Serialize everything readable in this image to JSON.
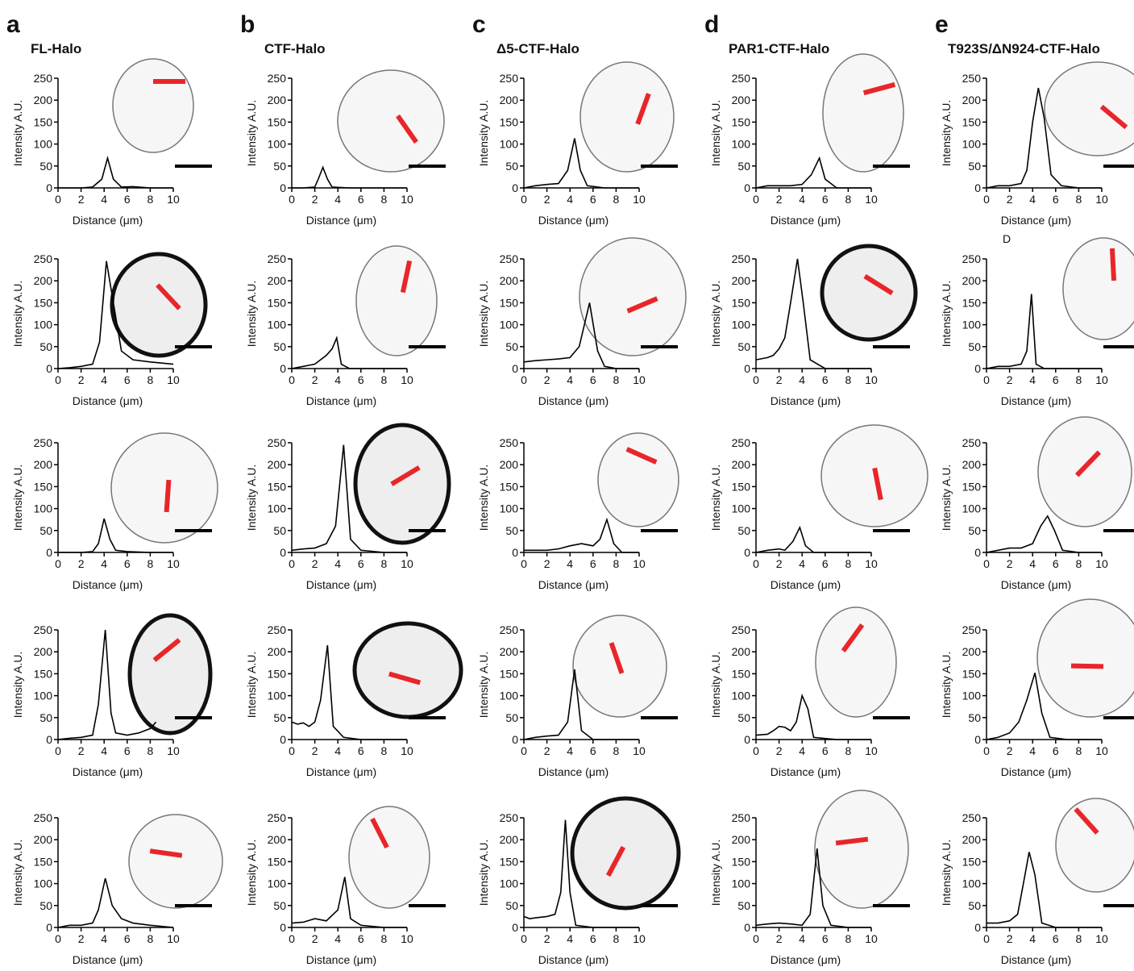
{
  "panels": [
    {
      "letter": "a",
      "title": "FL-Halo"
    },
    {
      "letter": "b",
      "title": "CTF-Halo"
    },
    {
      "letter": "c",
      "title": "Δ5-CTF-Halo"
    },
    {
      "letter": "d",
      "title": "PAR1-CTF-Halo"
    },
    {
      "letter": "e",
      "title": "T923S/ΔN924-CTF-Halo"
    }
  ],
  "chart_data": [
    {
      "type": "line",
      "xlabel": "Distance (μm)",
      "ylabel": "Intensity A.U.",
      "x": [
        0,
        1,
        2,
        3,
        3.8,
        4.3,
        4.8,
        5.5,
        6.5,
        8,
        10
      ],
      "values": [
        0,
        0,
        0,
        2,
        20,
        68,
        20,
        2,
        3,
        0,
        0
      ],
      "color": "#000000",
      "xlim": [
        0,
        10
      ],
      "ylim": [
        0,
        250
      ],
      "xticks": [
        0,
        2,
        4,
        6,
        8,
        10
      ],
      "yticks": [
        0,
        50,
        100,
        150,
        200,
        250
      ]
    },
    {
      "type": "line",
      "xlabel": "Distance (μm)",
      "ylabel": "Intensity A.U.",
      "x": [
        0,
        1,
        2,
        3,
        3.6,
        4.2,
        4.8,
        5.5,
        6.5,
        8,
        10
      ],
      "values": [
        0,
        2,
        5,
        10,
        60,
        245,
        150,
        40,
        20,
        15,
        10
      ],
      "color": "#000000",
      "xlim": [
        0,
        10
      ],
      "ylim": [
        0,
        250
      ],
      "xticks": [
        0,
        2,
        4,
        6,
        8,
        10
      ],
      "yticks": [
        0,
        50,
        100,
        150,
        200,
        250
      ]
    },
    {
      "type": "line",
      "xlabel": "Distance (μm)",
      "ylabel": "Intensity A.U.",
      "x": [
        0,
        1,
        2,
        3,
        3.5,
        4,
        4.5,
        5,
        6,
        8,
        10
      ],
      "values": [
        0,
        0,
        0,
        2,
        20,
        77,
        30,
        5,
        2,
        0,
        0
      ],
      "color": "#000000",
      "xlim": [
        0,
        10
      ],
      "ylim": [
        0,
        250
      ],
      "xticks": [
        0,
        2,
        4,
        6,
        8,
        10
      ],
      "yticks": [
        0,
        50,
        100,
        150,
        200,
        250
      ]
    },
    {
      "type": "line",
      "xlabel": "Distance (μm)",
      "ylabel": "Intensity A.U.",
      "x": [
        0,
        1,
        2,
        3,
        3.5,
        4.1,
        4.6,
        5,
        6,
        7,
        8,
        8.5
      ],
      "values": [
        0,
        3,
        5,
        10,
        80,
        250,
        60,
        15,
        10,
        15,
        25,
        40
      ],
      "color": "#000000",
      "xlim": [
        0,
        10
      ],
      "ylim": [
        0,
        250
      ],
      "xticks": [
        0,
        2,
        4,
        6,
        8,
        10
      ],
      "yticks": [
        0,
        50,
        100,
        150,
        200,
        250
      ]
    },
    {
      "type": "line",
      "xlabel": "Distance (μm)",
      "ylabel": "Intensity A.U.",
      "x": [
        0,
        1,
        2,
        3,
        3.5,
        4.1,
        4.7,
        5.5,
        6.5,
        8,
        10
      ],
      "values": [
        0,
        5,
        5,
        10,
        40,
        112,
        50,
        20,
        10,
        5,
        0
      ],
      "color": "#000000",
      "xlim": [
        0,
        10
      ],
      "ylim": [
        0,
        250
      ],
      "xticks": [
        0,
        2,
        4,
        6,
        8,
        10
      ],
      "yticks": [
        0,
        50,
        100,
        150,
        200,
        250
      ]
    },
    {
      "type": "line",
      "xlabel": "Distance (μm)",
      "ylabel": "Intensity A.U.",
      "x": [
        0,
        1,
        2,
        2.3,
        2.7,
        3.1,
        3.5,
        5,
        7,
        10
      ],
      "values": [
        0,
        0,
        2,
        20,
        47,
        20,
        2,
        0,
        0,
        0
      ],
      "color": "#000000",
      "xlim": [
        0,
        10
      ],
      "ylim": [
        0,
        250
      ],
      "xticks": [
        0,
        2,
        4,
        6,
        8,
        10
      ],
      "yticks": [
        0,
        50,
        100,
        150,
        200,
        250
      ]
    },
    {
      "type": "line",
      "xlabel": "Distance (μm)",
      "ylabel": "Intensity A.U.",
      "x": [
        0,
        1,
        2,
        3,
        3.5,
        3.9,
        4.3,
        5,
        7,
        10
      ],
      "values": [
        0,
        5,
        10,
        30,
        45,
        70,
        10,
        0,
        0,
        0
      ],
      "color": "#000000",
      "xlim": [
        0,
        10
      ],
      "ylim": [
        0,
        250
      ],
      "xticks": [
        0,
        2,
        4,
        6,
        8,
        10
      ],
      "yticks": [
        0,
        50,
        100,
        150,
        200,
        250
      ]
    },
    {
      "type": "line",
      "xlabel": "Distance (μm)",
      "ylabel": "Intensity A.U.",
      "x": [
        0,
        1,
        2,
        3,
        3.8,
        4.5,
        5.1,
        6,
        8,
        10
      ],
      "values": [
        5,
        8,
        10,
        20,
        60,
        245,
        30,
        5,
        0,
        0
      ],
      "color": "#000000",
      "xlim": [
        0,
        10
      ],
      "ylim": [
        0,
        250
      ],
      "xticks": [
        0,
        2,
        4,
        6,
        8,
        10
      ],
      "yticks": [
        0,
        50,
        100,
        150,
        200,
        250
      ]
    },
    {
      "type": "line",
      "xlabel": "Distance (μm)",
      "ylabel": "Intensity A.U.",
      "x": [
        0,
        0.5,
        1,
        1.5,
        2,
        2.5,
        3.1,
        3.6,
        4.5,
        6,
        8,
        10
      ],
      "values": [
        40,
        35,
        38,
        30,
        40,
        90,
        215,
        30,
        5,
        0,
        0,
        0
      ],
      "color": "#000000",
      "xlim": [
        0,
        10
      ],
      "ylim": [
        0,
        250
      ],
      "xticks": [
        0,
        2,
        4,
        6,
        8,
        10
      ],
      "yticks": [
        0,
        50,
        100,
        150,
        200,
        250
      ]
    },
    {
      "type": "line",
      "xlabel": "Distance (μm)",
      "ylabel": "Intensity A.U.",
      "x": [
        0,
        1,
        2,
        3,
        4,
        4.6,
        5.1,
        6,
        8,
        10
      ],
      "values": [
        10,
        12,
        20,
        15,
        40,
        115,
        20,
        5,
        0,
        0
      ],
      "color": "#000000",
      "xlim": [
        0,
        10
      ],
      "ylim": [
        0,
        250
      ],
      "xticks": [
        0,
        2,
        4,
        6,
        8,
        10
      ],
      "yticks": [
        0,
        50,
        100,
        150,
        200,
        250
      ]
    },
    {
      "type": "line",
      "xlabel": "Distance (μm)",
      "ylabel": "Intensity A.U.",
      "x": [
        0,
        1,
        2,
        3,
        3.8,
        4.4,
        4.9,
        5.5,
        7,
        10
      ],
      "values": [
        0,
        5,
        8,
        10,
        40,
        113,
        40,
        5,
        0,
        0
      ],
      "color": "#000000",
      "xlim": [
        0,
        10
      ],
      "ylim": [
        0,
        250
      ],
      "xticks": [
        0,
        2,
        4,
        6,
        8,
        10
      ],
      "yticks": [
        0,
        50,
        100,
        150,
        200,
        250
      ]
    },
    {
      "type": "line",
      "xlabel": "Distance (μm)",
      "ylabel": "Intensity A.U.",
      "x": [
        0,
        1,
        2,
        3,
        4,
        4.8,
        5.7,
        6.4,
        7,
        8,
        10
      ],
      "values": [
        15,
        18,
        20,
        22,
        25,
        50,
        150,
        40,
        5,
        0,
        0
      ],
      "color": "#000000",
      "xlim": [
        0,
        10
      ],
      "ylim": [
        0,
        250
      ],
      "xticks": [
        0,
        2,
        4,
        6,
        8,
        10
      ],
      "yticks": [
        0,
        50,
        100,
        150,
        200,
        250
      ]
    },
    {
      "type": "line",
      "xlabel": "Distance (μm)",
      "ylabel": "Intensity A.U.",
      "x": [
        0,
        1,
        2,
        3,
        4,
        5,
        6,
        6.6,
        7.2,
        7.8,
        8.5,
        10
      ],
      "values": [
        5,
        5,
        5,
        8,
        15,
        20,
        15,
        30,
        75,
        20,
        0,
        0
      ],
      "color": "#000000",
      "xlim": [
        0,
        10
      ],
      "ylim": [
        0,
        250
      ],
      "xticks": [
        0,
        2,
        4,
        6,
        8,
        10
      ],
      "yticks": [
        0,
        50,
        100,
        150,
        200,
        250
      ]
    },
    {
      "type": "line",
      "xlabel": "Distance (μm)",
      "ylabel": "Intensity A.U.",
      "x": [
        0,
        1,
        2,
        3,
        3.8,
        4.4,
        5,
        6,
        8,
        10
      ],
      "values": [
        0,
        5,
        8,
        10,
        40,
        160,
        20,
        0,
        0,
        0
      ],
      "color": "#000000",
      "xlim": [
        0,
        10
      ],
      "ylim": [
        0,
        250
      ],
      "xticks": [
        0,
        2,
        4,
        6,
        8,
        10
      ],
      "yticks": [
        0,
        50,
        100,
        150,
        200,
        250
      ]
    },
    {
      "type": "line",
      "xlabel": "Distance (μm)",
      "ylabel": "Intensity A.U.",
      "x": [
        0,
        0.5,
        1,
        2,
        2.7,
        3.2,
        3.6,
        4,
        4.5,
        6,
        8,
        10
      ],
      "values": [
        25,
        20,
        22,
        25,
        30,
        80,
        245,
        80,
        5,
        0,
        0,
        0
      ],
      "color": "#000000",
      "xlim": [
        0,
        10
      ],
      "ylim": [
        0,
        250
      ],
      "xticks": [
        0,
        2,
        4,
        6,
        8,
        10
      ],
      "yticks": [
        0,
        50,
        100,
        150,
        200,
        250
      ]
    },
    {
      "type": "line",
      "xlabel": "Distance (μm)",
      "ylabel": "Intensity A.U.",
      "x": [
        0,
        1,
        2,
        3,
        4,
        4.8,
        5.5,
        6,
        7,
        10
      ],
      "values": [
        0,
        5,
        5,
        5,
        8,
        30,
        68,
        20,
        0,
        0
      ],
      "color": "#000000",
      "xlim": [
        0,
        10
      ],
      "ylim": [
        0,
        250
      ],
      "xticks": [
        0,
        2,
        4,
        6,
        8,
        10
      ],
      "yticks": [
        0,
        50,
        100,
        150,
        200,
        250
      ]
    },
    {
      "type": "line",
      "xlabel": "Distance (μm)",
      "ylabel": "Intensity A.U.",
      "x": [
        0,
        1,
        1.5,
        2,
        2.5,
        3,
        3.6,
        4.1,
        4.7,
        6,
        10
      ],
      "values": [
        20,
        25,
        30,
        45,
        70,
        150,
        250,
        150,
        20,
        0,
        0
      ],
      "color": "#000000",
      "xlim": [
        0,
        10
      ],
      "ylim": [
        0,
        250
      ],
      "xticks": [
        0,
        2,
        4,
        6,
        8,
        10
      ],
      "yticks": [
        0,
        50,
        100,
        150,
        200,
        250
      ]
    },
    {
      "type": "line",
      "xlabel": "Distance (μm)",
      "ylabel": "Intensity A.U.",
      "x": [
        0,
        1,
        2,
        2.5,
        3.2,
        3.8,
        4.3,
        5,
        7,
        10
      ],
      "values": [
        0,
        5,
        8,
        5,
        25,
        57,
        15,
        0,
        0,
        0
      ],
      "color": "#000000",
      "xlim": [
        0,
        10
      ],
      "ylim": [
        0,
        250
      ],
      "xticks": [
        0,
        2,
        4,
        6,
        8,
        10
      ],
      "yticks": [
        0,
        50,
        100,
        150,
        200,
        250
      ]
    },
    {
      "type": "line",
      "xlabel": "Distance (μm)",
      "ylabel": "Intensity A.U.",
      "x": [
        0,
        1,
        1.5,
        2,
        2.5,
        3,
        3.5,
        4,
        4.5,
        5,
        7,
        10
      ],
      "values": [
        10,
        12,
        20,
        30,
        28,
        20,
        40,
        100,
        70,
        5,
        0,
        0
      ],
      "color": "#000000",
      "xlim": [
        0,
        10
      ],
      "ylim": [
        0,
        250
      ],
      "xticks": [
        0,
        2,
        4,
        6,
        8,
        10
      ],
      "yticks": [
        0,
        50,
        100,
        150,
        200,
        250
      ]
    },
    {
      "type": "line",
      "xlabel": "Distance (μm)",
      "ylabel": "Intensity A.U.",
      "x": [
        0,
        1,
        2,
        3,
        4,
        4.7,
        5.3,
        5.8,
        6.5,
        8,
        10
      ],
      "values": [
        5,
        8,
        10,
        8,
        5,
        30,
        180,
        50,
        5,
        0,
        0
      ],
      "color": "#000000",
      "xlim": [
        0,
        10
      ],
      "ylim": [
        0,
        250
      ],
      "xticks": [
        0,
        2,
        4,
        6,
        8,
        10
      ],
      "yticks": [
        0,
        50,
        100,
        150,
        200,
        250
      ]
    },
    {
      "type": "line",
      "xlabel": "Distance (μm)",
      "ylabel": "Intensity A.U.",
      "annotation": "D",
      "x": [
        0,
        1,
        2,
        3,
        3.5,
        4,
        4.5,
        5,
        5.6,
        6.5,
        8,
        10
      ],
      "values": [
        0,
        5,
        5,
        10,
        40,
        150,
        228,
        160,
        30,
        5,
        0,
        0
      ],
      "color": "#000000",
      "xlim": [
        0,
        10
      ],
      "ylim": [
        0,
        250
      ],
      "xticks": [
        0,
        2,
        4,
        6,
        8,
        10
      ],
      "yticks": [
        0,
        50,
        100,
        150,
        200,
        250
      ]
    },
    {
      "type": "line",
      "xlabel": "Distance (μm)",
      "ylabel": "Intensity A.U.",
      "x": [
        0,
        1,
        2,
        3,
        3.5,
        3.9,
        4.3,
        5,
        7,
        10
      ],
      "values": [
        0,
        5,
        5,
        10,
        40,
        170,
        10,
        0,
        0,
        0
      ],
      "color": "#000000",
      "xlim": [
        0,
        10
      ],
      "ylim": [
        0,
        250
      ],
      "xticks": [
        0,
        2,
        4,
        6,
        8,
        10
      ],
      "yticks": [
        0,
        50,
        100,
        150,
        200,
        250
      ]
    },
    {
      "type": "line",
      "xlabel": "Distance (μm)",
      "ylabel": "Intensity A.U.",
      "x": [
        0,
        1,
        2,
        3,
        4,
        4.7,
        5.3,
        5.9,
        6.6,
        8,
        10
      ],
      "values": [
        0,
        5,
        10,
        10,
        20,
        60,
        83,
        50,
        5,
        0,
        0
      ],
      "color": "#000000",
      "xlim": [
        0,
        10
      ],
      "ylim": [
        0,
        250
      ],
      "xticks": [
        0,
        2,
        4,
        6,
        8,
        10
      ],
      "yticks": [
        0,
        50,
        100,
        150,
        200,
        250
      ]
    },
    {
      "type": "line",
      "xlabel": "Distance (μm)",
      "ylabel": "Intensity A.U.",
      "x": [
        0,
        1,
        2,
        2.8,
        3.5,
        4.2,
        4.8,
        5.5,
        7,
        10
      ],
      "values": [
        0,
        5,
        15,
        40,
        90,
        152,
        60,
        5,
        0,
        0
      ],
      "color": "#000000",
      "xlim": [
        0,
        10
      ],
      "ylim": [
        0,
        250
      ],
      "xticks": [
        0,
        2,
        4,
        6,
        8,
        10
      ],
      "yticks": [
        0,
        50,
        100,
        150,
        200,
        250
      ]
    },
    {
      "type": "line",
      "xlabel": "Distance (μm)",
      "ylabel": "Intensity A.U.",
      "x": [
        0,
        1,
        2,
        2.7,
        3.2,
        3.7,
        4.2,
        4.8,
        6,
        8,
        10
      ],
      "values": [
        10,
        10,
        15,
        30,
        100,
        172,
        120,
        10,
        0,
        0,
        0
      ],
      "color": "#000000",
      "xlim": [
        0,
        10
      ],
      "ylim": [
        0,
        250
      ],
      "xticks": [
        0,
        2,
        4,
        6,
        8,
        10
      ],
      "yticks": [
        0,
        50,
        100,
        150,
        200,
        250
      ]
    }
  ]
}
